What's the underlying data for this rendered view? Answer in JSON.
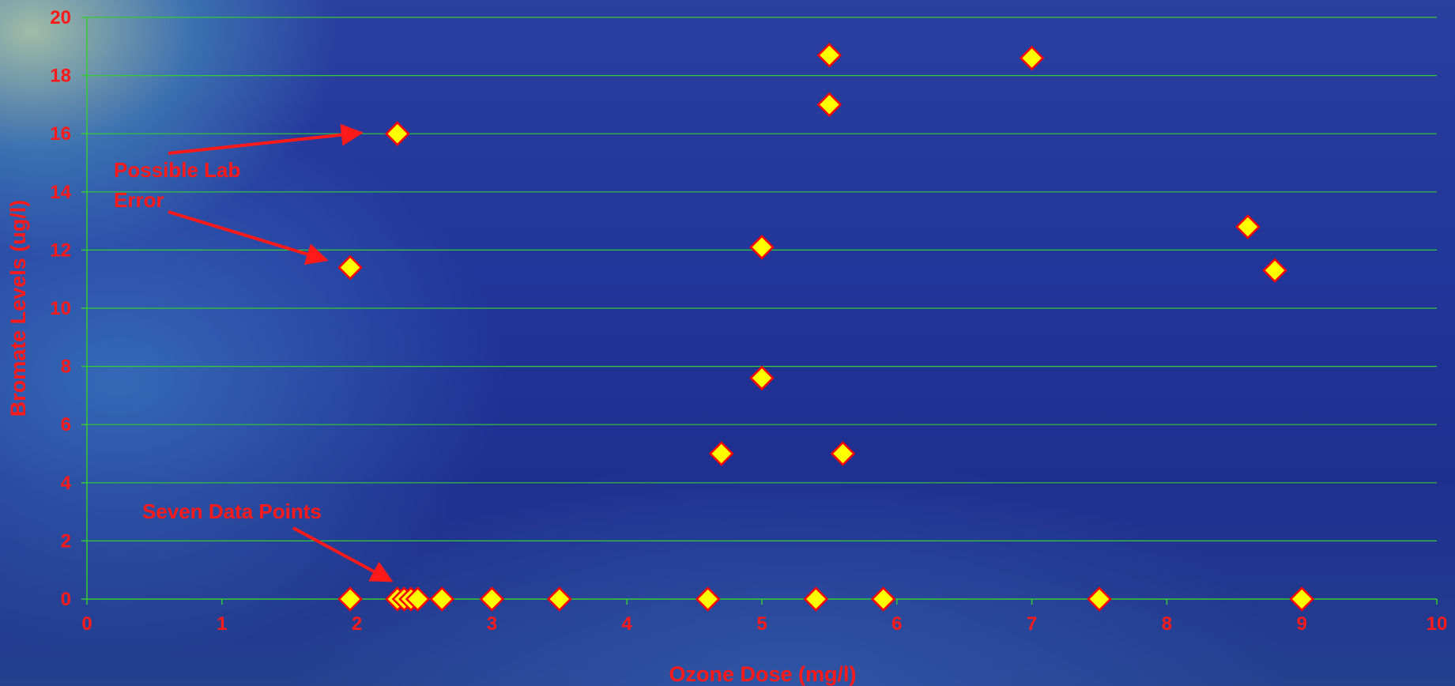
{
  "chart_data": {
    "type": "scatter",
    "title": "",
    "xlabel": "Ozone Dose (mg/l)",
    "ylabel": "Bromate Levels (ug/l)",
    "xlim": [
      0,
      10
    ],
    "ylim": [
      0,
      20
    ],
    "x_ticks": [
      0,
      1,
      2,
      3,
      4,
      5,
      6,
      7,
      8,
      9,
      10
    ],
    "y_ticks": [
      0,
      2,
      4,
      6,
      8,
      10,
      12,
      14,
      16,
      18,
      20
    ],
    "grid": "horizontal",
    "legend": "none",
    "colors": {
      "marker_fill": "#ffff00",
      "marker_edge": "#ff0000",
      "grid": "#33cc33",
      "text": "#ff1a1a"
    },
    "series": [
      {
        "points": [
          [
            1.95,
            11.4
          ],
          [
            2.3,
            16.0
          ],
          [
            4.7,
            5.0
          ],
          [
            5.0,
            12.1
          ],
          [
            5.0,
            7.6
          ],
          [
            5.5,
            18.7
          ],
          [
            5.5,
            17.0
          ],
          [
            5.6,
            5.0
          ],
          [
            7.0,
            18.6
          ],
          [
            8.6,
            12.8
          ],
          [
            8.8,
            11.3
          ],
          [
            1.95,
            0
          ],
          [
            2.3,
            0
          ],
          [
            2.35,
            0
          ],
          [
            2.4,
            0
          ],
          [
            2.45,
            0
          ],
          [
            2.63,
            0
          ],
          [
            3.0,
            0
          ],
          [
            3.5,
            0
          ],
          [
            4.6,
            0
          ],
          [
            5.4,
            0
          ],
          [
            5.9,
            0
          ],
          [
            7.5,
            0
          ],
          [
            9.0,
            0
          ]
        ]
      }
    ],
    "annotations": [
      {
        "text_lines": [
          "Possible Lab",
          "Error"
        ]
      },
      {
        "text": "Seven Data Points"
      }
    ]
  }
}
